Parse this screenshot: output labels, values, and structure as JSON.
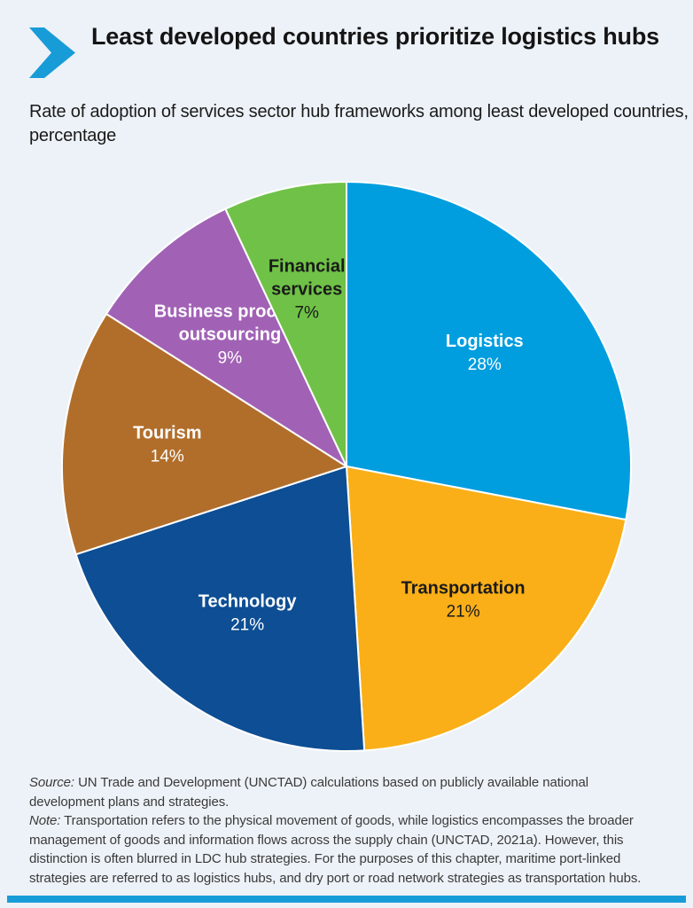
{
  "page": {
    "colors": {
      "background": "#EDF2F8",
      "accent": "#189CD8",
      "title_text": "#141414",
      "footer_text": "#3a3a3a"
    }
  },
  "header": {
    "chevron_icon": "chevron-right-icon",
    "title": "Least developed countries prioritize logistics hubs",
    "subtitle": "Rate of adoption of services sector hub frameworks among least developed countries, percentage"
  },
  "chart_data": {
    "type": "pie",
    "title": "Least developed countries prioritize logistics hubs",
    "subtitle": "Rate of adoption of services sector hub frameworks among least developed countries, percentage",
    "unit": "%",
    "start_angle_deg": 0,
    "direction": "clockwise",
    "legend": "none",
    "labels_on_slices": true,
    "categories": [
      "Logistics",
      "Transportation",
      "Technology",
      "Tourism",
      "Business process outsourcing",
      "Financial services"
    ],
    "values": [
      28,
      21,
      21,
      14,
      9,
      7
    ],
    "slices": [
      {
        "label": "Logistics",
        "label_lines": [
          "Logistics"
        ],
        "value": 28,
        "pct_text": "28%",
        "color": "#009EDF",
        "text_color": "#FFFFFF"
      },
      {
        "label": "Transportation",
        "label_lines": [
          "Transportation"
        ],
        "value": 21,
        "pct_text": "21%",
        "color": "#FAAF18",
        "text_color": "#1A1A1A"
      },
      {
        "label": "Technology",
        "label_lines": [
          "Technology"
        ],
        "value": 21,
        "pct_text": "21%",
        "color": "#0D4E94",
        "text_color": "#FFFFFF"
      },
      {
        "label": "Tourism",
        "label_lines": [
          "Tourism"
        ],
        "value": 14,
        "pct_text": "14%",
        "color": "#B16E2B",
        "text_color": "#FFFFFF"
      },
      {
        "label": "Business process outsourcing",
        "label_lines": [
          "Business process",
          "outsourcing"
        ],
        "value": 9,
        "pct_text": "9%",
        "color": "#A162B5",
        "text_color": "#FFFFFF"
      },
      {
        "label": "Financial services",
        "label_lines": [
          "Financial",
          "services"
        ],
        "value": 7,
        "pct_text": "7%",
        "color": "#6FC247",
        "text_color": "#1A1A1A"
      }
    ]
  },
  "footer": {
    "source_label": "Source:",
    "source_lines": [
      "UN Trade and Development (UNCTAD) calculations based on publicly available national",
      "development plans and strategies."
    ],
    "note_label": "Note:",
    "note_lines": [
      "Transportation refers to the physical movement of goods, while logistics encompasses the broader",
      "management of goods and information flows across the supply chain (UNCTAD, 2021a). However, this",
      "distinction is often blurred in LDC hub strategies. For the purposes of this chapter, maritime port-linked",
      "strategies are referred to as logistics hubs, and dry port or road network strategies as transportation hubs."
    ]
  }
}
